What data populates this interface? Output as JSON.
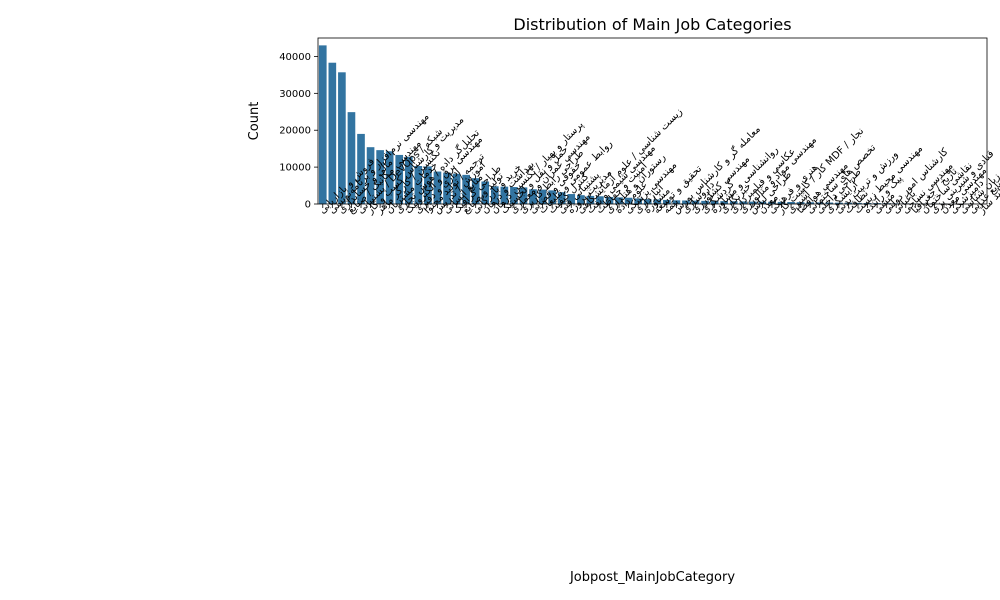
{
  "chart_data": {
    "type": "bar",
    "title": "Distribution of Main Job Categories",
    "xlabel": "Jobpost_MainJobCategory",
    "ylabel": "Count",
    "ylim": [
      0,
      45000
    ],
    "yticks": [
      0,
      10000,
      20000,
      30000,
      40000
    ],
    "grid": false,
    "legend": "none",
    "bar_color": "#3274a1",
    "categories": [
      "فروش و بازاریابی",
      "مهندسی نرم‌افزار و برنامه‌نویسی",
      "مالی و حسابداری",
      "مهندسی مکانیک / صنایع",
      "شبکه / DevOps / پشتیبانی",
      "مدیریت و کارشناس کسب و کار",
      "تکنسین / کارگر ماهر",
      "خدمات مشتریان",
      "تحلیل‌گر داده / هوش تجاری",
      "مهندسی برق و الکترونیک",
      "اداری و دفتری",
      "ترجمه / تولید محتوا",
      "آموزش / تدریس",
      "منابع انسانی",
      "طراحی گرافیک",
      "تولید و صنایع",
      "خرید و بازرگانی",
      "بهداشت و درمان",
      "پرستار و بهیار / تکنسین درمان",
      "حمل و نقل و لجستیک",
      "مهندسی عمران و معماری",
      "طراحی رابط کاربری",
      "حقوقی و قضایی",
      "روابط عمومی و تبلیغات",
      "کنترل کیفیت",
      "پشتیبانی فنی",
      "مدیریت پروژه",
      "زیست شناسی / علوم آزمایشگاهی",
      "مهندسی شیمی و نفت",
      "امنیت و حفاظت",
      "رستوران و هتلداری",
      "علوم داده",
      "مهندسی پزشکی",
      "انبارداری",
      "مشاوره",
      "تحقیق و توسعه",
      "بیمه",
      "معامله گر و کارشناس بورس",
      "داروسازی",
      "مهندسی کشاورزی",
      "گردشگری",
      "روانشناسی و مشاوره",
      "خبرنگاری",
      "عکاسی و فیلمبرداری",
      "مهندسی مواد و متالورژی",
      "طراحی لباس",
      "معدن",
      "هنری و فرهنگی",
      "نجار / MDF کار / کابینت کار",
      "آشپزی",
      "مهندسی هوافضا",
      "تخصص های ساختمانی",
      "طراحی داخلی",
      "آرایشگری",
      "ورزش و تربیت بدنی",
      "نظافت",
      "مهندسی محیط زیست",
      "پیک و راننده",
      "منشی",
      "کارشناس امور دولتی",
      "باغبانی",
      "مهندسی نساجی",
      "تاریخ / جغرافیا",
      "نقاشی ساختمان",
      "قنادی و شیرینی پزی",
      "مهندسی معدن",
      "دامپزشکی",
      "زبان شناسی",
      "صنایع غذایی",
      "قفل و کلید ساز"
    ],
    "values": [
      43000,
      38300,
      35700,
      24900,
      19000,
      15400,
      14600,
      14300,
      13300,
      12800,
      10300,
      10200,
      8800,
      8500,
      8200,
      7900,
      7000,
      6100,
      4800,
      4700,
      4600,
      4500,
      4000,
      3900,
      3700,
      3200,
      2700,
      2400,
      2200,
      2100,
      1900,
      1800,
      1700,
      1500,
      1300,
      1250,
      1100,
      1000,
      950,
      900,
      850,
      800,
      780,
      750,
      700,
      650,
      620,
      600,
      570,
      540,
      500,
      470,
      440,
      400,
      370,
      340,
      300,
      270,
      240,
      210,
      180,
      160,
      140,
      120,
      100,
      80,
      60,
      50,
      40,
      30
    ]
  }
}
